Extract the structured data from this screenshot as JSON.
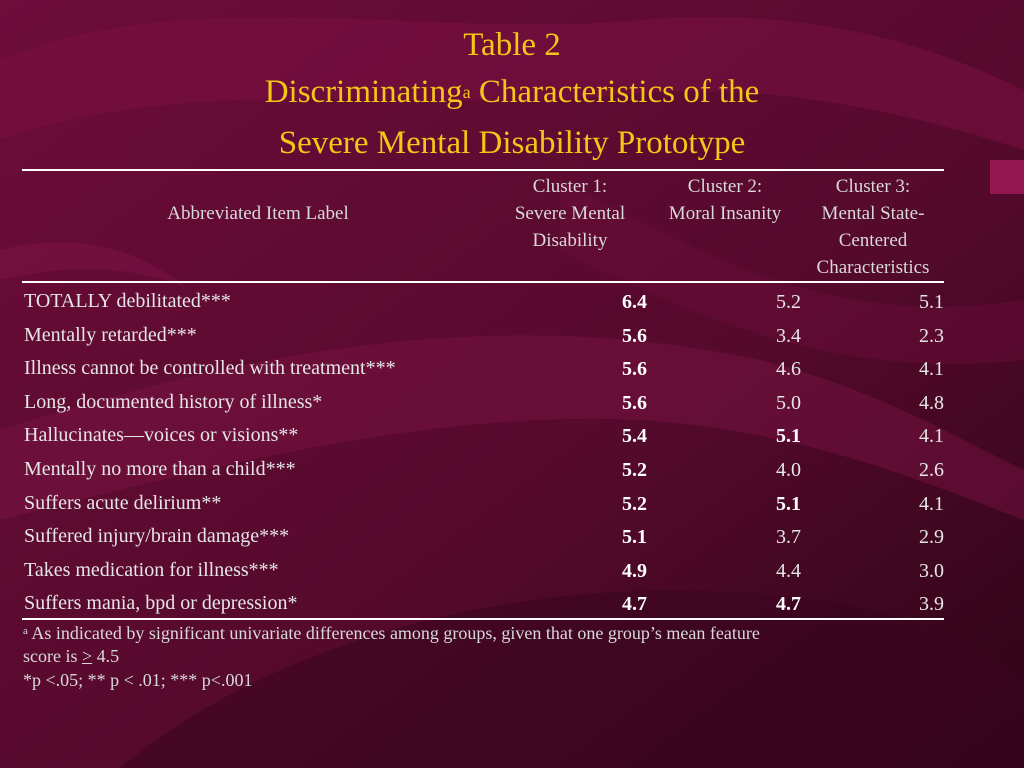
{
  "title": {
    "line1": "Table 2",
    "line2_a": "Discriminating",
    "line2_sup": "a",
    "line2_b": " Characteristics of the",
    "line3": "Severe Mental Disability Prototype"
  },
  "table": {
    "header": {
      "label": "Abbreviated Item Label",
      "cluster1": [
        "Cluster 1:",
        "Severe Mental",
        "Disability"
      ],
      "cluster2": [
        "Cluster 2:",
        "Moral Insanity"
      ],
      "cluster3": [
        "Cluster 3:",
        "Mental State-",
        "Centered",
        "Characteristics"
      ]
    },
    "rows": [
      {
        "label": "TOTALLY debilitated***",
        "c1": "6.4",
        "c2": "5.2",
        "c3": "5.1",
        "bold": [
          true,
          false,
          false
        ]
      },
      {
        "label": "Mentally retarded***",
        "c1": "5.6",
        "c2": "3.4",
        "c3": "2.3",
        "bold": [
          true,
          false,
          false
        ]
      },
      {
        "label": "Illness cannot be controlled with treatment***",
        "c1": "5.6",
        "c2": "4.6",
        "c3": "4.1",
        "bold": [
          true,
          false,
          false
        ]
      },
      {
        "label": "Long, documented history of illness*",
        "c1": "5.6",
        "c2": "5.0",
        "c3": "4.8",
        "bold": [
          true,
          false,
          false
        ]
      },
      {
        "label": "Hallucinates—voices or visions**",
        "c1": "5.4",
        "c2": "5.1",
        "c3": "4.1",
        "bold": [
          true,
          true,
          false
        ]
      },
      {
        "label": "Mentally no more than a child***",
        "c1": "5.2",
        "c2": "4.0",
        "c3": "2.6",
        "bold": [
          true,
          false,
          false
        ]
      },
      {
        "label": "Suffers acute delirium**",
        "c1": "5.2",
        "c2": "5.1",
        "c3": "4.1",
        "bold": [
          true,
          true,
          false
        ]
      },
      {
        "label": "Suffered injury/brain damage***",
        "c1": "5.1",
        "c2": "3.7",
        "c3": "2.9",
        "bold": [
          true,
          false,
          false
        ]
      },
      {
        "label": "Takes medication for illness***",
        "c1": "4.9",
        "c2": "4.4",
        "c3": "3.0",
        "bold": [
          true,
          false,
          false
        ]
      },
      {
        "label": "Suffers mania, bpd or depression*",
        "c1": "4.7",
        "c2": "4.7",
        "c3": "3.9",
        "bold": [
          true,
          true,
          false
        ]
      }
    ]
  },
  "footnotes": {
    "a_marker": "a",
    "a_line1": " As indicated by significant univariate differences among groups, given that one group’s mean feature",
    "a_line2_pre": "score is ",
    "a_line2_gt": ">",
    "a_line2_post": " 4.5",
    "sig": "*p <.05; ** p < .01; *** p<.001"
  },
  "colors": {
    "background": "#5a0a2e",
    "title": "#f5c518",
    "text": "#e6e6e6"
  }
}
